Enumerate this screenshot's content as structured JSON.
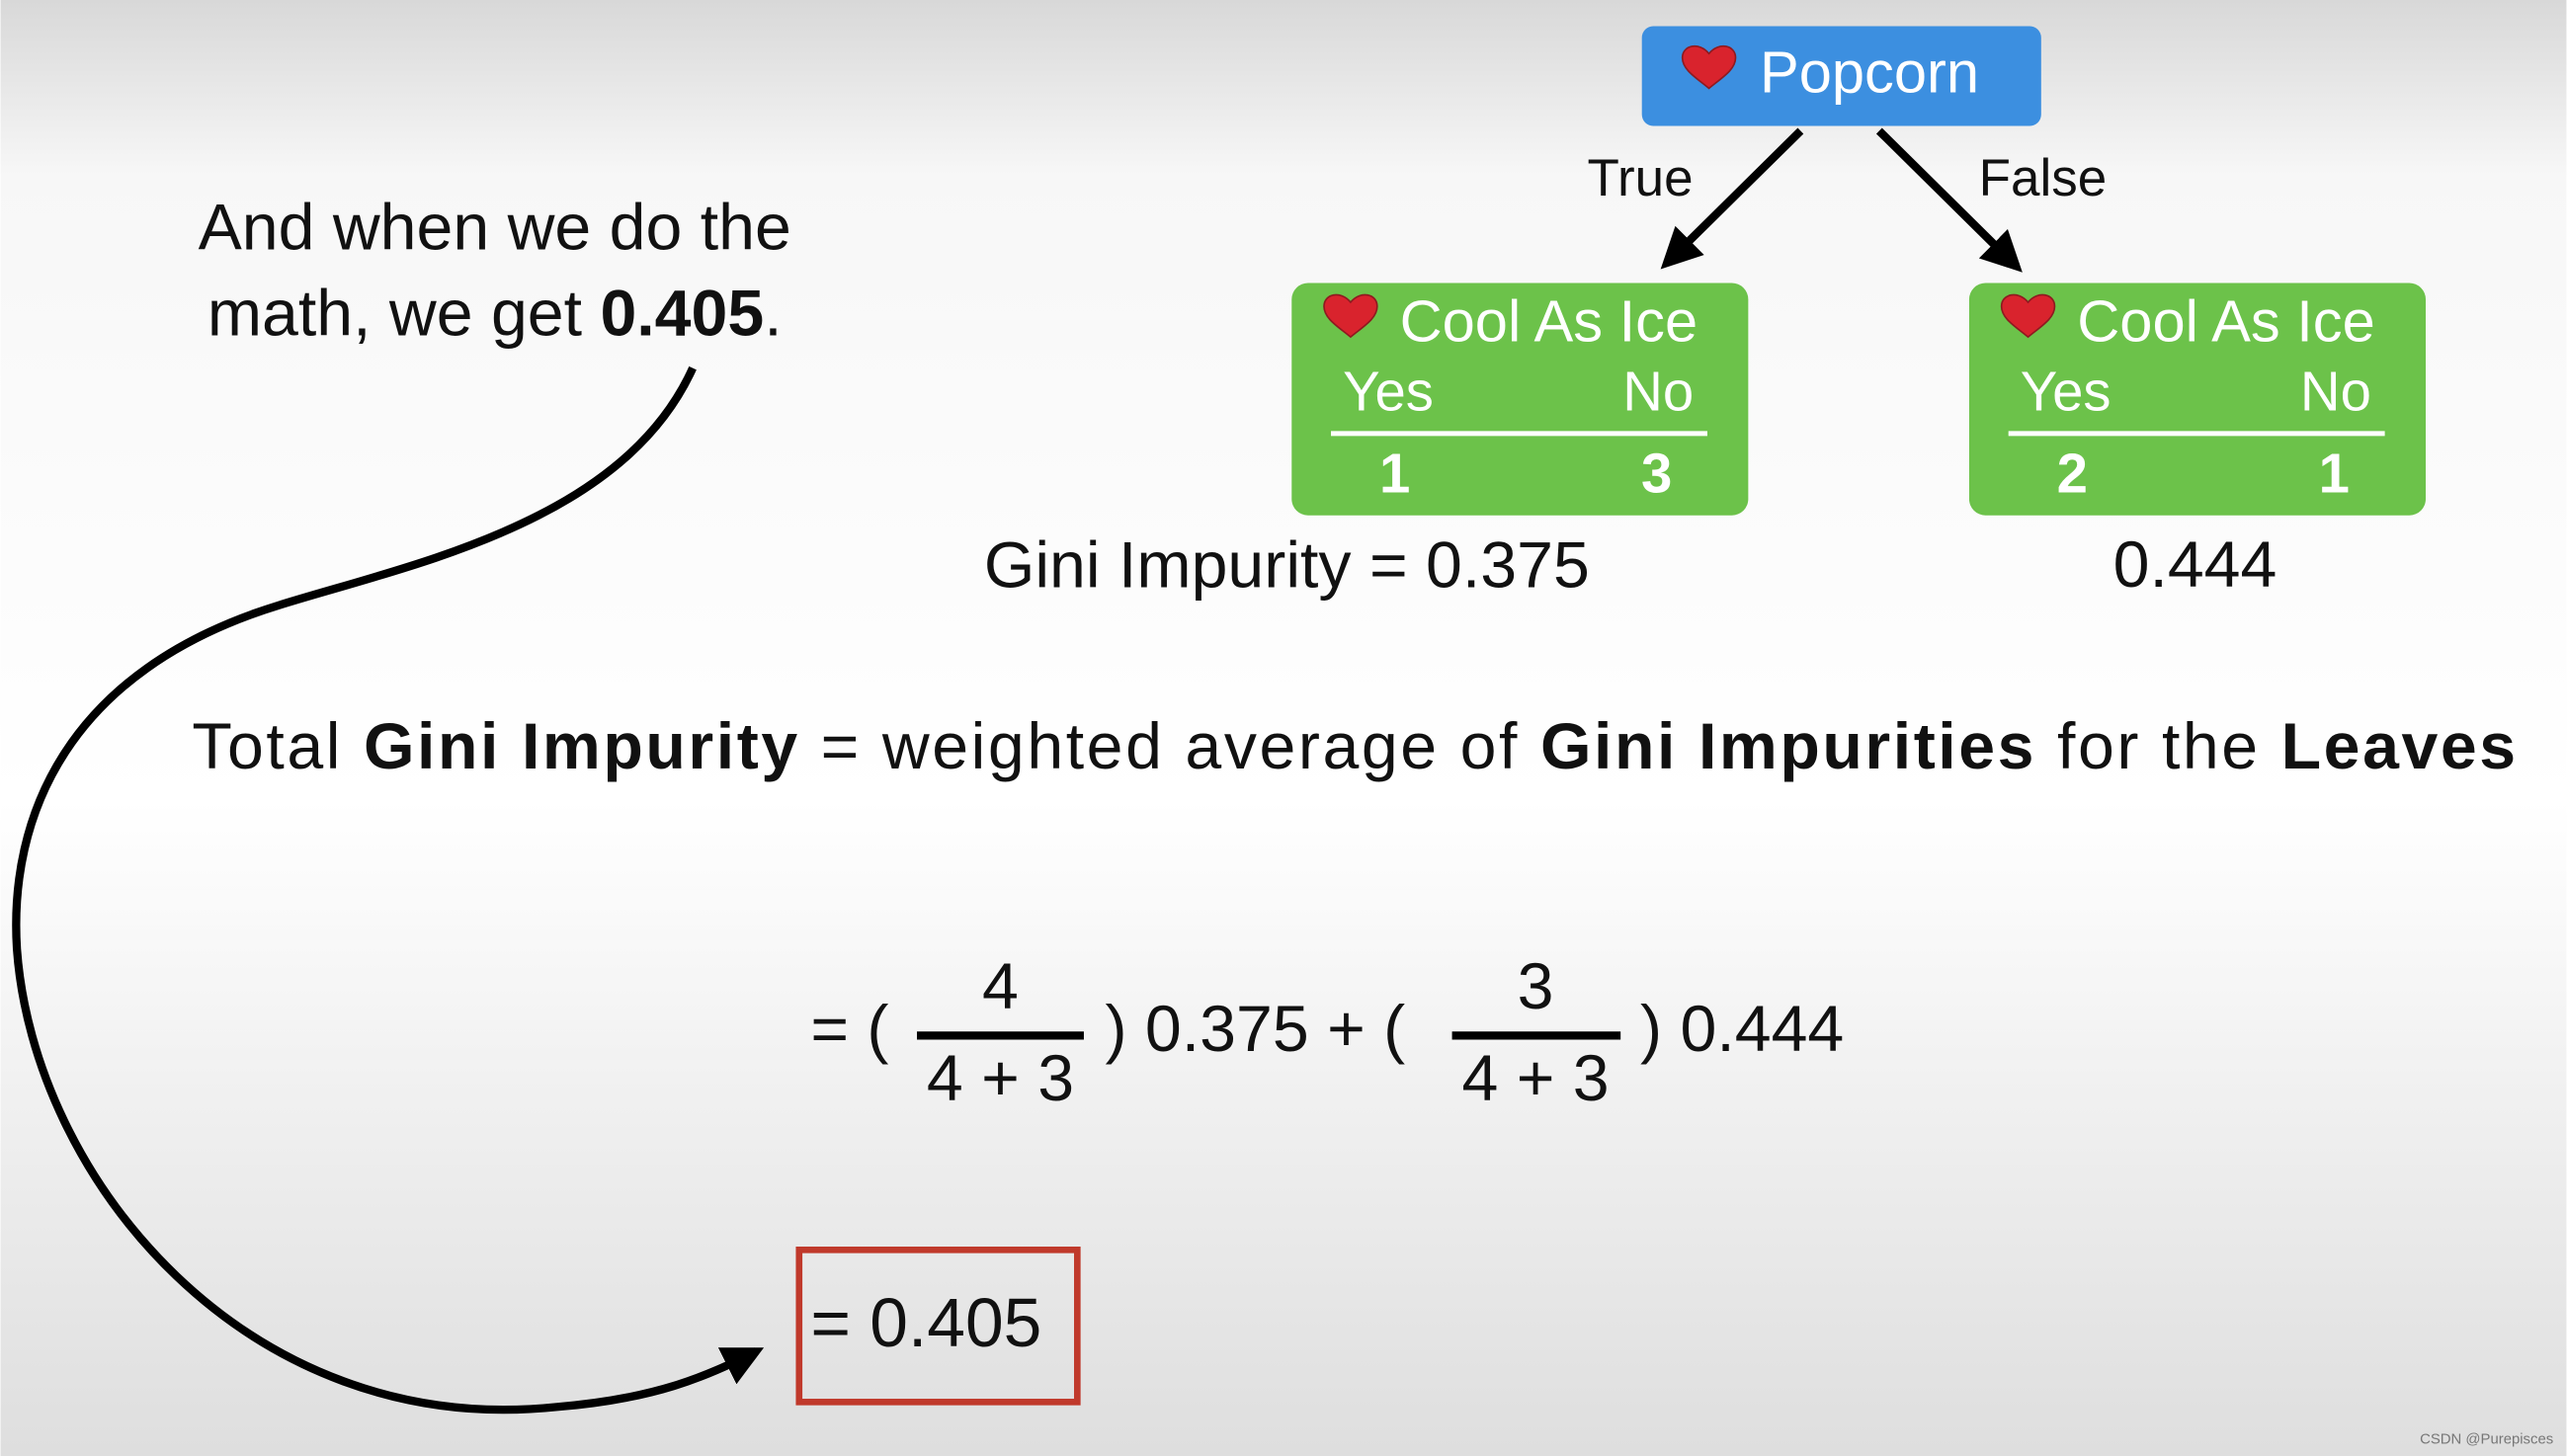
{
  "narration": {
    "line1": "And when we do the",
    "line2_prefix": "math, we get ",
    "line2_value": 0.405,
    "line2_suffix": "."
  },
  "tree": {
    "root": {
      "label": "Popcorn"
    },
    "edges": [
      "True",
      "False"
    ],
    "leaves": [
      {
        "label": "Cool As Ice",
        "yes_label": "Yes",
        "no_label": "No",
        "yes": 1,
        "no": 3,
        "gini_prefix": "Gini Impurity = ",
        "gini": 0.375
      },
      {
        "label": "Cool As Ice",
        "yes_label": "Yes",
        "no_label": "No",
        "yes": 2,
        "no": 1,
        "gini": 0.444
      }
    ]
  },
  "definition": [
    "Total ",
    "Gini Impurity",
    " = weighted average of ",
    "Gini Impurities",
    " for the ",
    "Leaves"
  ],
  "formula": {
    "open1": "= (",
    "num1": 4,
    "den1": "4 + 3",
    "mid": ") 0.375 + (",
    "num2": 3,
    "den2": "4 + 3",
    "close": ") 0.444"
  },
  "result": "= 0.405",
  "watermark": "CSDN @Purepisces"
}
